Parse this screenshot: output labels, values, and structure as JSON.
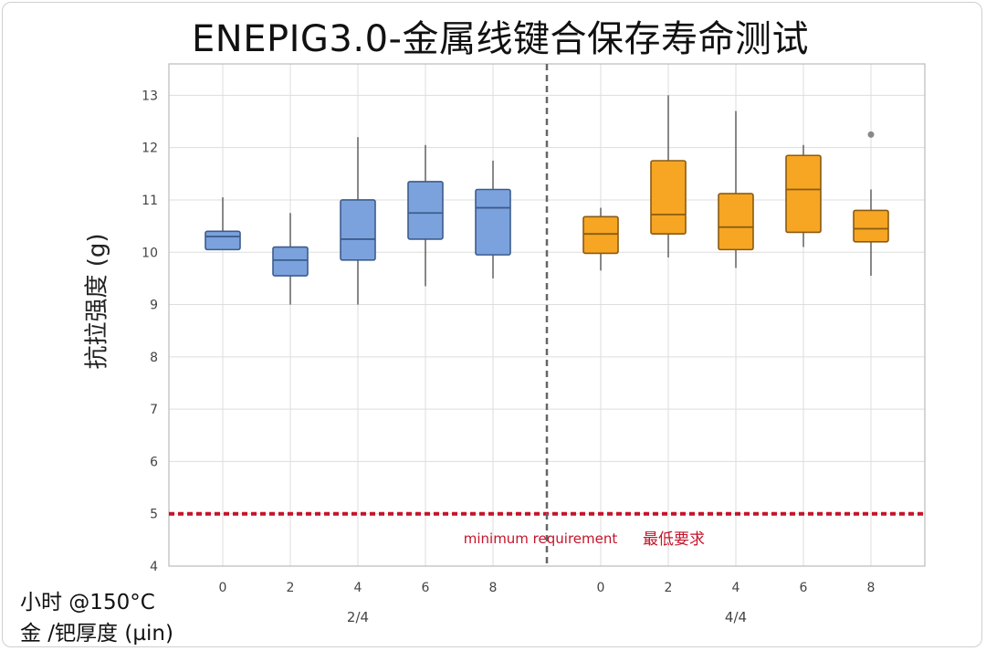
{
  "chart_data": {
    "type": "box",
    "title": "ENEPIG3.0-金属线键合保存寿命测试",
    "ylabel": "抗拉强度 (g)",
    "xlabel_line1": "小时 @150°C",
    "xlabel_line2": "金 /钯厚度 (µin)",
    "ylim": [
      4,
      13.6
    ],
    "yticks": [
      4,
      5,
      6,
      7,
      8,
      9,
      10,
      11,
      12,
      13
    ],
    "grid": true,
    "threshold": {
      "value": 5,
      "label_en": "minimum requirement",
      "label_cn": "最低要求",
      "color": "#c4142a"
    },
    "groups": [
      {
        "name": "2/4",
        "color": "#7ba2dd",
        "edge": "#3d5c8c",
        "boxes": [
          {
            "x": "0",
            "min": 10.05,
            "q1": 10.05,
            "median": 10.3,
            "q3": 10.4,
            "max": 11.05
          },
          {
            "x": "2",
            "min": 9.0,
            "q1": 9.55,
            "median": 9.85,
            "q3": 10.1,
            "max": 10.75
          },
          {
            "x": "4",
            "min": 9.0,
            "q1": 9.85,
            "median": 10.25,
            "q3": 11.0,
            "max": 12.2
          },
          {
            "x": "6",
            "min": 9.35,
            "q1": 10.25,
            "median": 10.75,
            "q3": 11.35,
            "max": 12.05
          },
          {
            "x": "8",
            "min": 9.5,
            "q1": 9.95,
            "median": 10.85,
            "q3": 11.2,
            "max": 11.75
          }
        ]
      },
      {
        "name": "4/4",
        "color": "#f6a623",
        "edge": "#8a5a10",
        "boxes": [
          {
            "x": "0",
            "min": 9.65,
            "q1": 9.98,
            "median": 10.35,
            "q3": 10.68,
            "max": 10.85
          },
          {
            "x": "2",
            "min": 9.9,
            "q1": 10.35,
            "median": 10.72,
            "q3": 11.75,
            "max": 13.0
          },
          {
            "x": "4",
            "min": 9.7,
            "q1": 10.05,
            "median": 10.48,
            "q3": 11.12,
            "max": 12.7
          },
          {
            "x": "6",
            "min": 10.1,
            "q1": 10.38,
            "median": 11.2,
            "q3": 11.85,
            "max": 12.05
          },
          {
            "x": "8",
            "min": 9.55,
            "q1": 10.2,
            "median": 10.45,
            "q3": 10.8,
            "max": 11.2,
            "outliers": [
              12.25
            ]
          }
        ]
      }
    ]
  }
}
